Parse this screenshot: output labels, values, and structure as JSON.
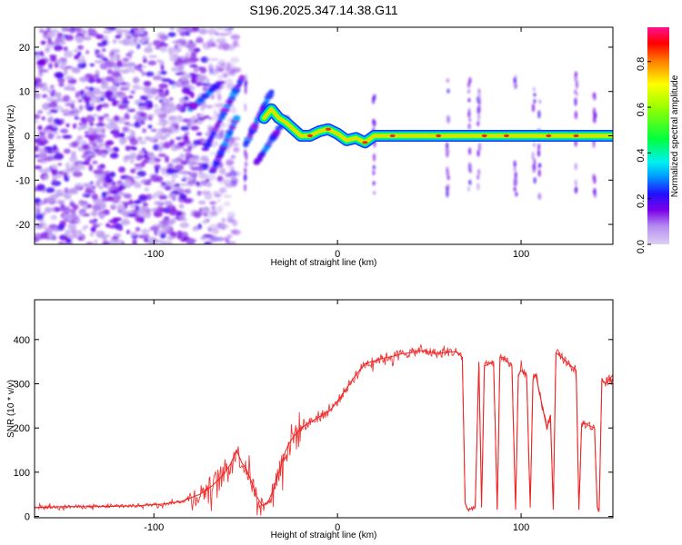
{
  "title": "S196.2025.347.14.38.G11",
  "chart_data": [
    {
      "type": "heatmap",
      "title": "S196.2025.347.14.38.G11",
      "xlabel": "Height of straight line (km)",
      "ylabel": "Frequency (Hz)",
      "xlim": [
        -165,
        150
      ],
      "ylim": [
        -24.5,
        24.5
      ],
      "xticks": [
        "-100",
        "0",
        "100"
      ],
      "xtick_values": [
        -100,
        0,
        100
      ],
      "yticks": [
        "20",
        "10",
        "0",
        "-10",
        "-20"
      ],
      "ytick_values": [
        20,
        10,
        0,
        -10,
        -20
      ],
      "colorbar": {
        "label": "Normalized spectral amplitude",
        "range": [
          0,
          0.95
        ],
        "ticks": [
          "0.0",
          "0.2",
          "0.4",
          "0.6",
          "0.8"
        ],
        "tick_values": [
          0,
          0.2,
          0.4,
          0.6,
          0.8
        ],
        "stops": [
          {
            "v": 0.0,
            "color": "#ddd0f4"
          },
          {
            "v": 0.08,
            "color": "#b48cf0"
          },
          {
            "v": 0.15,
            "color": "#7a00e8"
          },
          {
            "v": 0.22,
            "color": "#2010ff"
          },
          {
            "v": 0.3,
            "color": "#00a0ff"
          },
          {
            "v": 0.36,
            "color": "#00f0f0"
          },
          {
            "v": 0.46,
            "color": "#00ff40"
          },
          {
            "v": 0.6,
            "color": "#9aff00"
          },
          {
            "v": 0.7,
            "color": "#ffff00"
          },
          {
            "v": 0.8,
            "color": "#ff8000"
          },
          {
            "v": 0.88,
            "color": "#ff0000"
          },
          {
            "v": 0.95,
            "color": "#ff1090"
          }
        ]
      },
      "dominant_track": [
        [
          -40,
          4
        ],
        [
          -36,
          6
        ],
        [
          -32,
          4
        ],
        [
          -28,
          3
        ],
        [
          -24,
          1.5
        ],
        [
          -20,
          0
        ],
        [
          -15,
          0
        ],
        [
          -10,
          1
        ],
        [
          -5,
          1.5
        ],
        [
          0,
          0.5
        ],
        [
          5,
          -1
        ],
        [
          10,
          -0.5
        ],
        [
          15,
          -1.5
        ],
        [
          20,
          0
        ],
        [
          40,
          0
        ],
        [
          60,
          0
        ],
        [
          80,
          0
        ],
        [
          100,
          0
        ],
        [
          120,
          0
        ],
        [
          150,
          0
        ]
      ],
      "noise_region_x": [
        -165,
        -70
      ],
      "vertical_streaks_x": [
        -50,
        20,
        60,
        72,
        77,
        97,
        107,
        110,
        130,
        140
      ]
    },
    {
      "type": "line",
      "xlabel": "Height of straight line (km)",
      "ylabel": "SNR (10 * v/v)",
      "xlim": [
        -165,
        150
      ],
      "ylim": [
        -3,
        490
      ],
      "xticks": [
        "-100",
        "0",
        "100"
      ],
      "xtick_values": [
        -100,
        0,
        100
      ],
      "yticks": [
        "0",
        "100",
        "200",
        "300",
        "400"
      ],
      "ytick_values": [
        0,
        100,
        200,
        300,
        400
      ],
      "line_color": "#ee2222",
      "series": [
        {
          "name": "SNR",
          "x": [
            -165,
            -150,
            -130,
            -110,
            -95,
            -85,
            -75,
            -68,
            -62,
            -58,
            -55,
            -52,
            -50,
            -47,
            -44,
            -41,
            -38,
            -35,
            -33,
            -31,
            -29,
            -27,
            -24,
            -20,
            -16,
            -12,
            -8,
            -4,
            0,
            5,
            10,
            15,
            20,
            25,
            30,
            35,
            40,
            45,
            50,
            55,
            60,
            65,
            68,
            69.5,
            71,
            75,
            77,
            78.5,
            80,
            85,
            87,
            88.5,
            90,
            95,
            97,
            98.5,
            100,
            103,
            105,
            106.5,
            108,
            111,
            114,
            116,
            117.5,
            119,
            122,
            126,
            130,
            131.5,
            133,
            135,
            137,
            140,
            141.5,
            142.5,
            144,
            146,
            150
          ],
          "y": [
            20,
            22,
            22,
            24,
            28,
            34,
            50,
            70,
            95,
            120,
            150,
            120,
            110,
            80,
            45,
            25,
            30,
            60,
            90,
            110,
            140,
            160,
            180,
            200,
            210,
            220,
            230,
            240,
            260,
            290,
            320,
            345,
            352,
            358,
            362,
            368,
            370,
            375,
            372,
            368,
            372,
            372,
            360,
            30,
            15,
            20,
            350,
            20,
            340,
            350,
            15,
            360,
            360,
            340,
            15,
            320,
            330,
            320,
            20,
            310,
            320,
            260,
            200,
            230,
            15,
            370,
            360,
            345,
            330,
            15,
            210,
            210,
            205,
            200,
            20,
            15,
            310,
            300,
            320
          ]
        }
      ]
    }
  ]
}
